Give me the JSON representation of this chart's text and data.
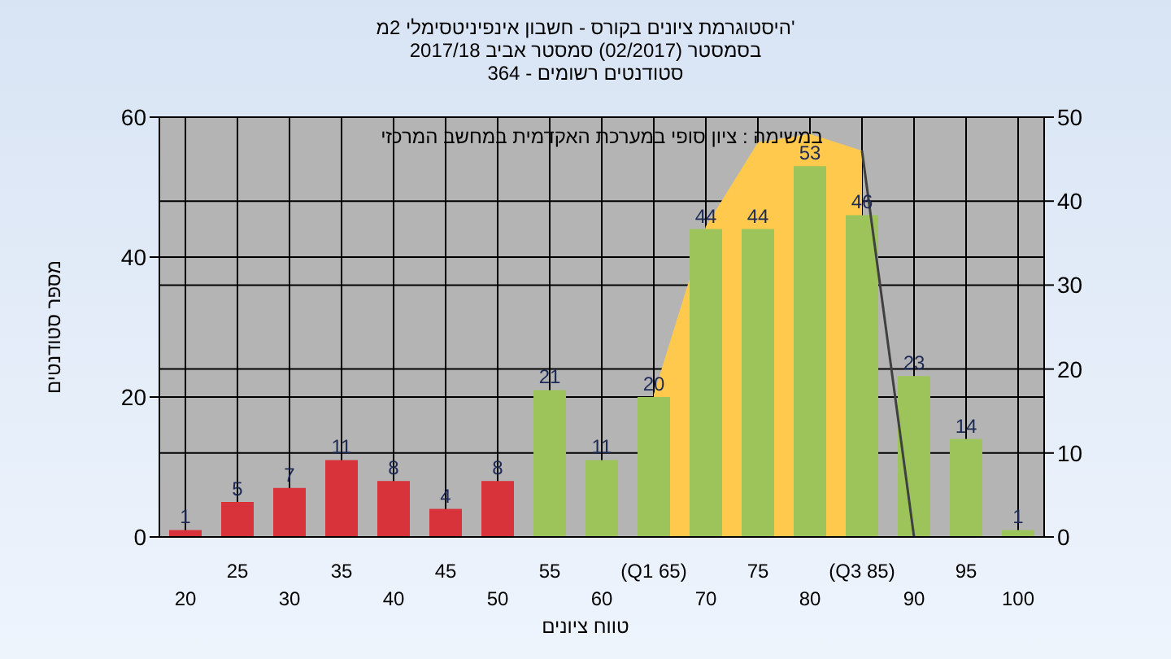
{
  "chart_data": {
    "type": "bar",
    "title": "היסטוגרמת ציונים בקורס - חשבון אינפיניטסימלי 2מ'\nבסמסטר  (02/2017)  סמסטר אביב 2017/18\nסטודנטים רשומים - 364",
    "xlabel": "טווח ציונים",
    "ylabel": "מספר סטודנטים",
    "annotations": [
      "במשימה : ציון סופי במערכת האקדמית במחשב המרכזי"
    ],
    "categories": [
      "20",
      "25",
      "30",
      "35",
      "40",
      "45",
      "50",
      "55",
      "60",
      "(Q1 65)",
      "70",
      "75",
      "80",
      "(Q3 85)",
      "90",
      "95",
      "100"
    ],
    "series": [
      {
        "type": "area",
        "axis": "y2",
        "color": "#ffc94d",
        "values": [
          null,
          null,
          null,
          null,
          null,
          null,
          null,
          null,
          null,
          17,
          37,
          47,
          48,
          46,
          null,
          null,
          null
        ]
      },
      {
        "colors": [
          "#d8323a",
          "#d8323a",
          "#d8323a",
          "#d8323a",
          "#d8323a",
          "#d8323a",
          "#d8323a",
          "#9cc45a",
          "#9cc45a",
          "#9cc45a",
          "#9cc45a",
          "#9cc45a",
          "#9cc45a",
          "#9cc45a",
          "#9cc45a",
          "#9cc45a",
          "#9cc45a"
        ],
        "values": [
          1,
          5,
          7,
          11,
          8,
          4,
          8,
          21,
          11,
          20,
          44,
          44,
          53,
          46,
          23,
          14,
          1
        ],
        "value_labels": [
          "1",
          "5",
          "7",
          "11",
          "8",
          "4",
          "8",
          "21",
          "11",
          "20",
          "44",
          "44",
          "53",
          "46",
          "23",
          "14",
          "1"
        ]
      },
      {
        "type": "line",
        "axis": "y2",
        "color": "#404040",
        "values": [
          null,
          null,
          null,
          null,
          null,
          null,
          null,
          null,
          null,
          null,
          null,
          null,
          null,
          46,
          0,
          null,
          null
        ]
      }
    ],
    "ylim": [
      0,
      60
    ],
    "yticks": [
      0,
      20,
      40,
      60
    ],
    "y2lim": [
      0,
      50
    ],
    "y2ticks": [
      0,
      10,
      20,
      30,
      40,
      50
    ],
    "grid": true,
    "marker": "none"
  }
}
